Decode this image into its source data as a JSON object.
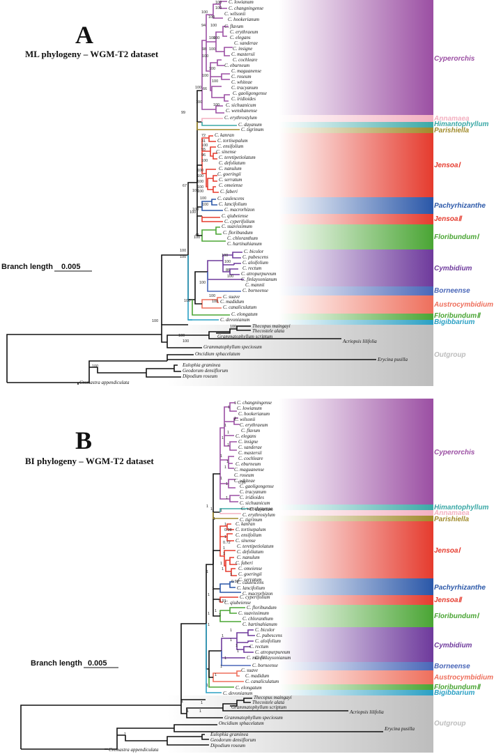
{
  "panelA": {
    "letter": "A",
    "title": "ML phylogeny – WGM-T2 dataset",
    "scale_label": "Branch length",
    "scale_value": "0.005",
    "clade_labels": [
      "Cyperorchis",
      "Annamaea",
      "Himantophyllum",
      "Parishiella",
      "JensoaⅠ",
      "Pachyrhizanthe",
      "JensoaⅡ",
      "FloribundumⅠ",
      "Cymbidium",
      "Borneense",
      "Austrocymbidium",
      "FloribundumⅡ",
      "Bigibbarium",
      "Outgroup"
    ],
    "taxa": [
      "C. lowianum",
      "C. changningense",
      "C. wilsonii",
      "C. hookerianum",
      "C. flavum",
      "C. erythraeum",
      "C. elegans",
      "C. sanderae",
      "C. insigne",
      "C. mastersii",
      "C. cochleare",
      "C. eburneum",
      "C. maguanense",
      "C. roseum",
      "C. whiteae",
      "C. tracyanum",
      "C. gaoligongense",
      "C. iridioides",
      "C. sichuanicum",
      "C. wenshanense",
      "C. erythrostylum",
      "C. dayanum",
      "C. tigrinum",
      "C. kanran",
      "C. tortisepalum",
      "C. ensifolium",
      "C. sinense",
      "C. teretipetiolatum",
      "C. defoliatum",
      "C. nanulum",
      "C. goeringii",
      "C. serratum",
      "C. omeiense",
      "C. faberi",
      "C. caulescens",
      "C. lancifolium",
      "C. macrorhizon",
      "C. qiubeiense",
      "C. cyperifolium",
      "C. suavissimum",
      "C. floribundum",
      "C. chloranthum",
      "C. hartinahianum",
      "C. bicolor",
      "C. pubescens",
      "C. aloifolium",
      "C. rectum",
      "C. atropurpureum",
      "C. finlaysonianum",
      "C. mannii",
      "C. borneense",
      "C. suave",
      "C. madidum",
      "C. canaliculatum",
      "C. elongatum",
      "C. devonianum",
      "Thecopus maingayi",
      "Thecostele alata",
      "Grammatophyllum scriptum",
      "Acriopsis lilifolia",
      "Grammatophyllum speciosum",
      "Oncidium sphacelatum",
      "Erycina pusilla",
      "Eulophia graminea",
      "Geodorum densiflorum",
      "Dipodium roseum",
      "Cremastra appendiculata"
    ],
    "support": [
      "100",
      "100",
      "100",
      "100",
      "94",
      "100",
      "100",
      "100",
      "98",
      "100",
      "100",
      "100",
      "100",
      "100",
      "66",
      "100",
      "100",
      "100",
      "99",
      "72",
      "31",
      "100",
      "55",
      "96",
      "100",
      "100",
      "100",
      "100",
      "100",
      "100",
      "67",
      "100",
      "100",
      "100",
      "100",
      "100",
      "100",
      "41",
      "100",
      "100",
      "100",
      "100",
      "86",
      "100",
      "100",
      "100",
      "100",
      "100",
      "100",
      "100",
      "100",
      "100",
      "100"
    ]
  },
  "panelB": {
    "letter": "B",
    "title": "BI phylogeny – WGM-T2 dataset",
    "scale_label": "Branch length",
    "scale_value": "0.005",
    "clade_labels": [
      "Cyperorchis",
      "Himantophyllum",
      "Annamaea",
      "Parishiella",
      "JensoaⅠ",
      "Pachyrhizanthe",
      "JensoaⅡ",
      "FloribundumⅠ",
      "Cymbidium",
      "Borneense",
      "Austrocymbidium",
      "FloribundumⅡ",
      "Bigibbarium",
      "Outgroup"
    ],
    "taxa": [
      "C. changningense",
      "C. lowianum",
      "C. hookerianum",
      "C. wilsonii",
      "C. erythraeum",
      "C. flavum",
      "C. elegans",
      "C. insigne",
      "C. sanderae",
      "C. mastersii",
      "C. cochleare",
      "C. eburneum",
      "C. maguanense",
      "C. roseum",
      "C. whiteae",
      "C. gaoligongense",
      "C. tracyanum",
      "C. iridioides",
      "C. sichuanicum",
      "C. wenshanense",
      "C. dayanum",
      "C. erythrostylum",
      "C. tigrinum",
      "C. kanran",
      "C. tortisepalum",
      "C. ensifolium",
      "C. sinense",
      "C. teretipetiolatum",
      "C. defoliatum",
      "C. nanulum",
      "C. faberi",
      "C. omeiense",
      "C. goeringii",
      "C. serratum",
      "C. caulescens",
      "C. lancifolium",
      "C. macrorhizon",
      "C. cyperifolium",
      "C. qiubeiense",
      "C. floribundum",
      "C. suavissimum",
      "C. chloranthum",
      "C. hartinahianum",
      "C. bicolor",
      "C. pubescens",
      "C. aloifolium",
      "C. rectum",
      "C. atropurpureum",
      "C. finlaysonianum",
      "C. mannii",
      "C. borneense",
      "C. suave",
      "C. madidum",
      "C. canaliculatum",
      "C. elongatum",
      "C. devonianum",
      "Thecopus maingayi",
      "Thecostele alata",
      "Grammatophyllum scriptum",
      "Acriopsis lilifolia",
      "Grammatophyllum speciosum",
      "Oncidium sphacelatum",
      "Erycina pusilla",
      "Eulophia graminea",
      "Geodorum densiflorum",
      "Dipodium roseum",
      "Cremastra appendiculata"
    ],
    "support": [
      "1",
      "1",
      "1",
      "1",
      "1",
      "1",
      "1",
      "1",
      "1",
      "1",
      "1",
      "1",
      "1",
      "0.86",
      "1",
      "1",
      "1",
      "1",
      "1",
      "0.98",
      "1",
      "0.72",
      "1",
      "1",
      "1",
      "1",
      "1",
      "1",
      "1",
      "1",
      "1",
      "1",
      "0.98",
      "0.91",
      "1",
      "1",
      "1",
      "1",
      "1",
      "1",
      "1",
      "1",
      "1",
      "1",
      "1",
      "1",
      "1",
      "1",
      "1",
      "1"
    ]
  },
  "colors": {
    "Cyperorchis": "#9b4fa3",
    "Annamaea": "#f3b0c0",
    "Himantophyllum": "#3aa8a6",
    "Parishiella": "#a08a2a",
    "Jensoa1": "#e53b2e",
    "Pachyrhizanthe": "#2a57a8",
    "Jensoa2": "#e53b2e",
    "Floribundum1": "#4aa534",
    "Cymbidium": "#6e3a9c",
    "Borneense": "#4a67b8",
    "Austrocymbidium": "#ee6f5c",
    "Floribundum2": "#4aa534",
    "Bigibbarium": "#2aa0c4",
    "Outgroup": "#bdbdbd"
  }
}
